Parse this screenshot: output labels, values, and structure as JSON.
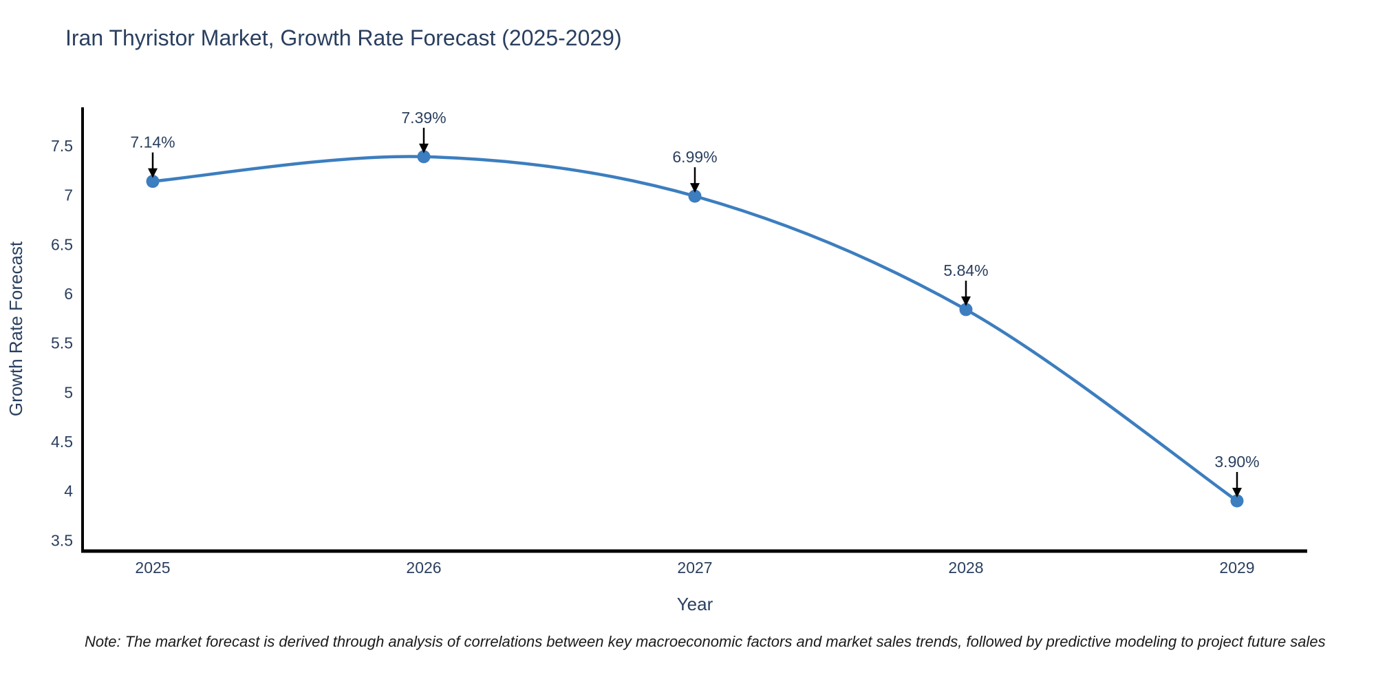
{
  "note": "Note: The market forecast is derived through analysis of correlations between key macroeconomic factors and market sales trends, followed by predictive modeling to project future sales",
  "chart_data": {
    "type": "line",
    "title": "Iran Thyristor Market, Growth Rate Forecast (2025-2029)",
    "xlabel": "Year",
    "ylabel": "Growth Rate Forecast",
    "x": [
      2025,
      2026,
      2027,
      2028,
      2029
    ],
    "series": [
      {
        "name": "Growth Rate Forecast",
        "values": [
          7.14,
          7.39,
          6.99,
          5.84,
          3.9
        ],
        "point_labels": [
          "7.14%",
          "7.39%",
          "6.99%",
          "5.84%",
          "3.90%"
        ]
      }
    ],
    "yticks": [
      7.5,
      7,
      6.5,
      6,
      5.5,
      5,
      4.5,
      4,
      3.5
    ],
    "xticks": [
      "2025",
      "2026",
      "2027",
      "2028",
      "2029"
    ],
    "ylim": [
      3.39,
      7.91
    ],
    "xlim": [
      2024.74,
      2029.26
    ],
    "line_shape": "spline",
    "grid": false,
    "legend_position": "none",
    "annotations_have_arrows": true,
    "colors": {
      "line": "#3c7ebf",
      "marker": "#3c7ebf",
      "text": "#2a3f5f",
      "axis": "#000000",
      "arrow": "#000000",
      "background": "#ffffff"
    }
  }
}
